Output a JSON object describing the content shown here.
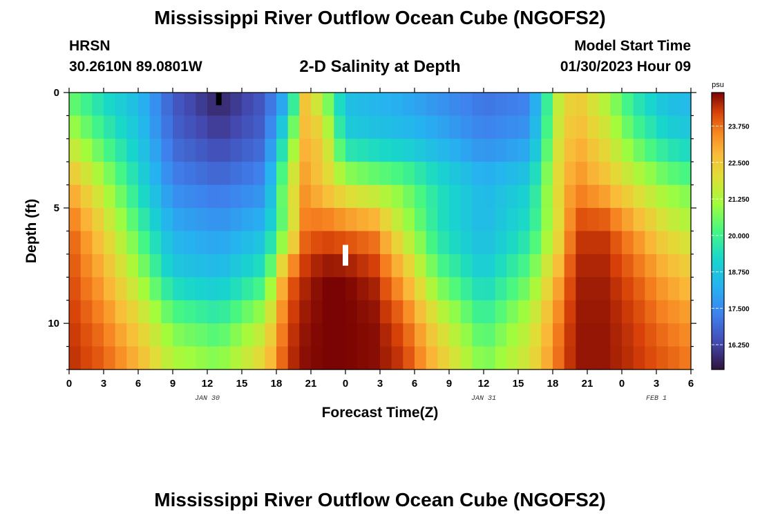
{
  "title": "Mississippi River Outflow Ocean Cube (NGOFS2)",
  "title_repeat": "Mississippi River Outflow Ocean Cube (NGOFS2)",
  "station": {
    "id": "HRSN",
    "coords": "30.2610N  89.0801W"
  },
  "subtitle": "2-D Salinity at Depth",
  "model_start": {
    "label": "Model Start Time",
    "value": "01/30/2023 Hour 09"
  },
  "chart_data": {
    "type": "heatmap",
    "xlabel": "Forecast Time(Z)",
    "ylabel": "Depth (ft)",
    "x_ticks": [
      "0",
      "3",
      "6",
      "9",
      "12",
      "15",
      "18",
      "21",
      "0",
      "3",
      "6",
      "9",
      "12",
      "15",
      "18",
      "21",
      "0",
      "3",
      "6"
    ],
    "x_tick_hours": [
      0,
      3,
      6,
      9,
      12,
      15,
      18,
      21,
      24,
      27,
      30,
      33,
      36,
      39,
      42,
      45,
      48,
      51,
      54
    ],
    "xlim_hours": [
      0,
      54
    ],
    "date_labels": [
      {
        "hour": 12,
        "text": "JAN 30"
      },
      {
        "hour": 36,
        "text": "JAN 31"
      },
      {
        "hour": 51,
        "text": "FEB 1"
      }
    ],
    "y_ticks": [
      "0",
      "5",
      "10"
    ],
    "y_tick_values": [
      0,
      5,
      10
    ],
    "ylim": [
      0,
      12
    ],
    "y_inverted": true,
    "colorbar": {
      "unit": "psu",
      "ticks": [
        "16.250",
        "17.500",
        "18.750",
        "20.000",
        "21.250",
        "22.500",
        "23.750"
      ],
      "tick_values": [
        16.25,
        17.5,
        18.75,
        20.0,
        21.25,
        22.5,
        23.75
      ],
      "range": [
        15.4,
        24.9
      ]
    },
    "salinity_keyframes": {
      "hours": [
        0,
        3,
        6,
        9,
        13,
        17,
        19,
        20.5,
        22,
        24,
        26.5,
        29,
        32,
        36,
        40,
        42.5,
        44,
        46.5,
        49,
        52,
        54
      ],
      "depths_ft": [
        0,
        2,
        4,
        6,
        8,
        10,
        12
      ],
      "values": [
        [
          20.3,
          19.2,
          18.4,
          16.6,
          15.6,
          16.6,
          18.0,
          22.5,
          21.0,
          18.5,
          18.2,
          18.0,
          17.5,
          17.0,
          17.2,
          21.5,
          22.5,
          21.2,
          19.5,
          18.4,
          18.3
        ],
        [
          21.5,
          20.0,
          18.8,
          16.8,
          16.2,
          16.8,
          20.0,
          22.8,
          22.5,
          19.0,
          18.8,
          18.6,
          18.2,
          17.4,
          17.8,
          21.8,
          23.0,
          22.0,
          20.4,
          19.2,
          18.9
        ],
        [
          23.0,
          21.3,
          19.4,
          17.4,
          17.0,
          17.5,
          21.5,
          23.2,
          22.5,
          21.5,
          21.0,
          20.6,
          19.5,
          18.4,
          19.0,
          22.2,
          23.5,
          22.8,
          21.8,
          20.8,
          20.5
        ],
        [
          24.0,
          22.3,
          20.2,
          18.2,
          17.8,
          18.5,
          21.0,
          23.7,
          24.0,
          23.8,
          23.5,
          21.5,
          19.5,
          18.4,
          19.5,
          22.0,
          24.3,
          24.3,
          23.3,
          22.0,
          21.5
        ],
        [
          24.2,
          23.0,
          21.2,
          19.0,
          18.6,
          19.8,
          23.8,
          24.5,
          24.9,
          24.9,
          24.5,
          23.0,
          20.5,
          19.0,
          20.5,
          23.0,
          24.6,
          24.6,
          24.0,
          23.0,
          22.6
        ],
        [
          24.4,
          23.6,
          22.3,
          20.6,
          20.0,
          21.5,
          24.2,
          24.7,
          24.9,
          24.9,
          24.8,
          24.0,
          22.0,
          20.0,
          21.5,
          23.6,
          24.7,
          24.7,
          24.3,
          23.6,
          23.3
        ],
        [
          24.5,
          24.0,
          23.0,
          21.5,
          21.0,
          22.5,
          24.4,
          24.8,
          24.9,
          24.9,
          24.8,
          24.4,
          22.8,
          20.8,
          22.0,
          23.8,
          24.7,
          24.7,
          24.4,
          24.0,
          23.7
        ]
      ]
    },
    "markers": [
      {
        "hour": 13,
        "depth_from": 0,
        "depth_to": 0.55,
        "color": "#000000"
      },
      {
        "hour": 24,
        "depth_from": 6.6,
        "depth_to": 7.5,
        "color": "#ffffff"
      }
    ]
  }
}
